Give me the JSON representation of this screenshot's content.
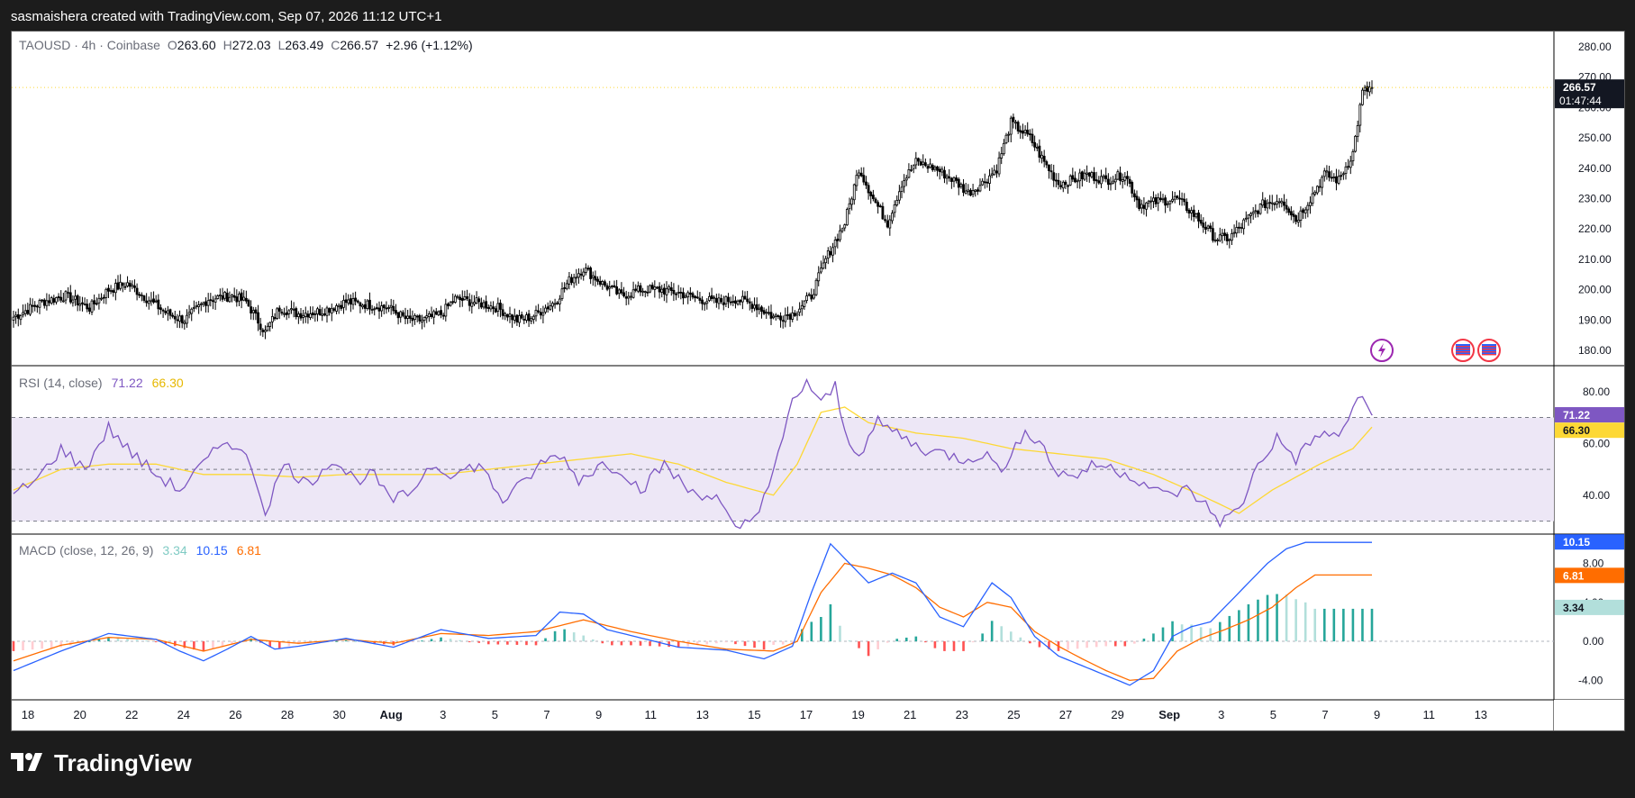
{
  "attribution": "sasmaishera created with TradingView.com, Sep 07, 2026 11:12 UTC+1",
  "footer_brand": "TradingView",
  "header": {
    "symbol": "TAOUSD · 4h · Coinbase",
    "o_label": "O",
    "o": "263.60",
    "h_label": "H",
    "h": "272.03",
    "l_label": "L",
    "l": "263.49",
    "c_label": "C",
    "c": "266.57",
    "change": "+2.96 (+1.12%)"
  },
  "price_badge": {
    "price": "266.57",
    "countdown": "01:47:44"
  },
  "rsi": {
    "title": "RSI (14, close)",
    "value": "71.22",
    "ma": "66.30"
  },
  "macd": {
    "title": "MACD (close, 12, 26, 9)",
    "hist": "3.34",
    "macd": "10.15",
    "signal": "6.81"
  },
  "colors": {
    "up": "#089981",
    "down": "#f23645",
    "candle": "#000000",
    "rsi_line": "#7e57c2",
    "rsi_ma": "#fdd835",
    "rsi_band": "#ede7f6",
    "macd_line": "#2962ff",
    "signal_line": "#ff6d00",
    "hist_up_strong": "#26a69a",
    "hist_up_weak": "#b2dfdb",
    "hist_down_strong": "#ff5252",
    "hist_down_weak": "#ffcdd2",
    "last_price_line": "#fdd835"
  },
  "chart_data": [
    {
      "type": "candlestick",
      "title": "TAOUSD · 4h · Coinbase",
      "x_ticks": [
        "18",
        "20",
        "22",
        "24",
        "26",
        "Aug",
        "3",
        "5",
        "7",
        "9",
        "11",
        "13",
        "15",
        "17",
        "19",
        "21",
        "23",
        "25",
        "27",
        "29",
        "Sep",
        "3",
        "5",
        "7",
        "9",
        "11",
        "13"
      ],
      "x_ticks_shown": [
        "18",
        "20",
        "22",
        "24",
        "26",
        "28",
        "30",
        "Aug",
        "3",
        "5",
        "7",
        "9",
        "11",
        "13",
        "15",
        "17",
        "19",
        "21",
        "23",
        "25",
        "27",
        "29",
        "Sep",
        "3",
        "5",
        "7",
        "9",
        "11",
        "13"
      ],
      "ylim": [
        175,
        285
      ],
      "y_ticks": [
        180,
        190,
        200,
        210,
        220,
        230,
        240,
        250,
        260,
        270,
        280
      ],
      "last_price": 266.57,
      "close_keypoints": [
        [
          0,
          191
        ],
        [
          12,
          196
        ],
        [
          22,
          198
        ],
        [
          32,
          194
        ],
        [
          40,
          200
        ],
        [
          48,
          202
        ],
        [
          58,
          196
        ],
        [
          65,
          192
        ],
        [
          72,
          190
        ],
        [
          82,
          197
        ],
        [
          92,
          198
        ],
        [
          98,
          196
        ],
        [
          106,
          186
        ],
        [
          112,
          194
        ],
        [
          120,
          192
        ],
        [
          130,
          193
        ],
        [
          140,
          196
        ],
        [
          150,
          195
        ],
        [
          158,
          194
        ],
        [
          166,
          190
        ],
        [
          172,
          190
        ],
        [
          180,
          192
        ],
        [
          186,
          197
        ],
        [
          194,
          196
        ],
        [
          204,
          194
        ],
        [
          212,
          190
        ],
        [
          218,
          191
        ],
        [
          228,
          196
        ],
        [
          234,
          203
        ],
        [
          240,
          207
        ],
        [
          248,
          202
        ],
        [
          256,
          198
        ],
        [
          264,
          200
        ],
        [
          272,
          200
        ],
        [
          280,
          199
        ],
        [
          288,
          197
        ],
        [
          296,
          196
        ],
        [
          304,
          197
        ],
        [
          312,
          195
        ],
        [
          320,
          191
        ],
        [
          328,
          192
        ],
        [
          336,
          198
        ],
        [
          342,
          210
        ],
        [
          350,
          222
        ],
        [
          356,
          240
        ],
        [
          362,
          230
        ],
        [
          368,
          222
        ],
        [
          374,
          235
        ],
        [
          380,
          242
        ],
        [
          388,
          240
        ],
        [
          396,
          236
        ],
        [
          402,
          232
        ],
        [
          408,
          235
        ],
        [
          414,
          240
        ],
        [
          420,
          255
        ],
        [
          428,
          250
        ],
        [
          434,
          242
        ],
        [
          440,
          235
        ],
        [
          446,
          236
        ],
        [
          452,
          238
        ],
        [
          460,
          236
        ],
        [
          468,
          238
        ],
        [
          474,
          228
        ],
        [
          482,
          229
        ],
        [
          490,
          230
        ],
        [
          498,
          224
        ],
        [
          506,
          217
        ],
        [
          512,
          217
        ],
        [
          518,
          222
        ],
        [
          526,
          228
        ],
        [
          534,
          230
        ],
        [
          540,
          223
        ],
        [
          546,
          230
        ],
        [
          552,
          238
        ],
        [
          558,
          236
        ],
        [
          564,
          245
        ],
        [
          568,
          265
        ],
        [
          572,
          266.57
        ]
      ],
      "events": [
        "lightning-icon",
        "us-flag-icon",
        "us-flag-icon"
      ]
    },
    {
      "type": "line",
      "title": "RSI (14, close)",
      "ylim": [
        25,
        90
      ],
      "y_ticks": [
        40,
        60,
        80
      ],
      "band": [
        30,
        70
      ],
      "midline": 50,
      "series": [
        {
          "name": "RSI",
          "keypoints": [
            [
              0,
              40
            ],
            [
              10,
              46
            ],
            [
              20,
              58
            ],
            [
              30,
              50
            ],
            [
              40,
              66
            ],
            [
              50,
              56
            ],
            [
              60,
              48
            ],
            [
              70,
              42
            ],
            [
              80,
              52
            ],
            [
              90,
              62
            ],
            [
              100,
              52
            ],
            [
              106,
              34
            ],
            [
              114,
              52
            ],
            [
              124,
              44
            ],
            [
              134,
              54
            ],
            [
              144,
              46
            ],
            [
              152,
              48
            ],
            [
              158,
              38
            ],
            [
              166,
              40
            ],
            [
              176,
              52
            ],
            [
              186,
              48
            ],
            [
              196,
              52
            ],
            [
              206,
              38
            ],
            [
              214,
              44
            ],
            [
              222,
              52
            ],
            [
              230,
              56
            ],
            [
              238,
              46
            ],
            [
              248,
              52
            ],
            [
              256,
              50
            ],
            [
              264,
              42
            ],
            [
              274,
              52
            ],
            [
              284,
              42
            ],
            [
              296,
              39
            ],
            [
              304,
              26
            ],
            [
              312,
              32
            ],
            [
              320,
              48
            ],
            [
              328,
              76
            ],
            [
              334,
              84
            ],
            [
              340,
              75
            ],
            [
              346,
              82
            ],
            [
              350,
              64
            ],
            [
              356,
              56
            ],
            [
              364,
              68
            ],
            [
              372,
              64
            ],
            [
              382,
              58
            ],
            [
              392,
              56
            ],
            [
              400,
              54
            ],
            [
              408,
              56
            ],
            [
              418,
              50
            ],
            [
              426,
              66
            ],
            [
              434,
              58
            ],
            [
              440,
              48
            ],
            [
              448,
              48
            ],
            [
              456,
              52
            ],
            [
              464,
              50
            ],
            [
              474,
              46
            ],
            [
              484,
              40
            ],
            [
              494,
              42
            ],
            [
              500,
              38
            ],
            [
              508,
              30
            ],
            [
              516,
              34
            ],
            [
              524,
              52
            ],
            [
              532,
              62
            ],
            [
              540,
              54
            ],
            [
              550,
              64
            ],
            [
              558,
              62
            ],
            [
              566,
              78
            ],
            [
              572,
              71.22
            ]
          ]
        },
        {
          "name": "MA",
          "keypoints": [
            [
              0,
              42
            ],
            [
              20,
              50
            ],
            [
              40,
              52
            ],
            [
              60,
              52
            ],
            [
              80,
              48
            ],
            [
              100,
              48
            ],
            [
              120,
              47
            ],
            [
              140,
              48
            ],
            [
              160,
              48
            ],
            [
              180,
              48
            ],
            [
              200,
              50
            ],
            [
              220,
              52
            ],
            [
              240,
              54
            ],
            [
              260,
              56
            ],
            [
              280,
              52
            ],
            [
              300,
              45
            ],
            [
              320,
              40
            ],
            [
              330,
              52
            ],
            [
              340,
              72
            ],
            [
              350,
              74
            ],
            [
              360,
              68
            ],
            [
              380,
              64
            ],
            [
              400,
              62
            ],
            [
              420,
              58
            ],
            [
              440,
              56
            ],
            [
              460,
              54
            ],
            [
              480,
              48
            ],
            [
              500,
              40
            ],
            [
              516,
              33
            ],
            [
              530,
              42
            ],
            [
              550,
              52
            ],
            [
              564,
              58
            ],
            [
              572,
              66.3
            ]
          ]
        }
      ]
    },
    {
      "type": "line+histogram",
      "title": "MACD (close, 12, 26, 9)",
      "ylim": [
        -6,
        11
      ],
      "y_ticks": [
        -4,
        0,
        4,
        8
      ],
      "series": [
        {
          "name": "MACD",
          "keypoints": [
            [
              0,
              -3
            ],
            [
              20,
              -1
            ],
            [
              40,
              0.8
            ],
            [
              60,
              0.2
            ],
            [
              70,
              -1
            ],
            [
              80,
              -2
            ],
            [
              90,
              -0.8
            ],
            [
              100,
              0.5
            ],
            [
              110,
              -0.8
            ],
            [
              120,
              -0.5
            ],
            [
              140,
              0.3
            ],
            [
              160,
              -0.6
            ],
            [
              180,
              1.2
            ],
            [
              200,
              0.3
            ],
            [
              220,
              0.6
            ],
            [
              230,
              3
            ],
            [
              240,
              2.8
            ],
            [
              250,
              1.2
            ],
            [
              260,
              0.6
            ],
            [
              280,
              -0.6
            ],
            [
              300,
              -0.9
            ],
            [
              316,
              -1.8
            ],
            [
              328,
              -0.5
            ],
            [
              336,
              5
            ],
            [
              344,
              10
            ],
            [
              352,
              8
            ],
            [
              360,
              6
            ],
            [
              370,
              7
            ],
            [
              380,
              6
            ],
            [
              390,
              2.5
            ],
            [
              400,
              1.5
            ],
            [
              412,
              6
            ],
            [
              420,
              4.5
            ],
            [
              430,
              0.5
            ],
            [
              440,
              -1.5
            ],
            [
              450,
              -2.5
            ],
            [
              460,
              -3.5
            ],
            [
              470,
              -4.5
            ],
            [
              480,
              -3
            ],
            [
              488,
              0.5
            ],
            [
              496,
              1.5
            ],
            [
              504,
              2
            ],
            [
              512,
              4
            ],
            [
              520,
              6
            ],
            [
              528,
              8
            ],
            [
              536,
              9.5
            ],
            [
              544,
              10.15
            ]
          ]
        },
        {
          "name": "Signal",
          "keypoints": [
            [
              0,
              -2
            ],
            [
              20,
              -0.4
            ],
            [
              40,
              0.4
            ],
            [
              60,
              0.2
            ],
            [
              80,
              -1
            ],
            [
              100,
              0.2
            ],
            [
              120,
              -0.2
            ],
            [
              140,
              0.2
            ],
            [
              160,
              -0.2
            ],
            [
              180,
              0.8
            ],
            [
              200,
              0.6
            ],
            [
              220,
              1
            ],
            [
              240,
              2.2
            ],
            [
              260,
              1
            ],
            [
              280,
              0
            ],
            [
              300,
              -0.8
            ],
            [
              320,
              -1
            ],
            [
              330,
              0
            ],
            [
              340,
              5
            ],
            [
              350,
              8
            ],
            [
              360,
              7.5
            ],
            [
              370,
              6.8
            ],
            [
              380,
              5.5
            ],
            [
              390,
              3.5
            ],
            [
              400,
              2.5
            ],
            [
              410,
              4
            ],
            [
              420,
              3.5
            ],
            [
              430,
              1
            ],
            [
              440,
              -0.5
            ],
            [
              450,
              -1.8
            ],
            [
              460,
              -3
            ],
            [
              470,
              -4
            ],
            [
              480,
              -3.8
            ],
            [
              490,
              -1
            ],
            [
              500,
              0.3
            ],
            [
              510,
              1.2
            ],
            [
              520,
              2.2
            ],
            [
              530,
              3.5
            ],
            [
              540,
              5.5
            ],
            [
              548,
              6.81
            ]
          ]
        }
      ],
      "histogram_last": 3.34
    }
  ]
}
